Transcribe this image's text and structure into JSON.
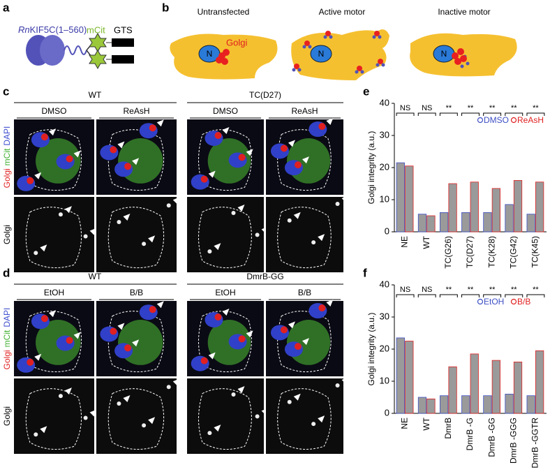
{
  "panel_labels": [
    "a",
    "b",
    "c",
    "d",
    "e",
    "f"
  ],
  "panel_a": {
    "construct_prefix": "Rn",
    "construct": "KIF5C(1–560)",
    "fluor": "mCit",
    "tag": "GTS"
  },
  "panel_b": {
    "states": [
      "Untransfected",
      "Active motor",
      "Inactive motor"
    ],
    "nucleus": "N",
    "golgi": "Golgi"
  },
  "panel_c": {
    "groups": [
      "WT",
      "TC(D27)"
    ],
    "conditions": [
      "DMSO",
      "ReAsH",
      "DMSO",
      "ReAsH"
    ],
    "channels": [
      "Golgi",
      "mCit",
      "DAPI"
    ],
    "bottom_channel": "Golgi"
  },
  "panel_d": {
    "groups": [
      "WT",
      "DmrB-GG"
    ],
    "conditions": [
      "EtOH",
      "B/B",
      "EtOH",
      "B/B"
    ],
    "channels": [
      "Golgi",
      "mCit",
      "DAPI"
    ],
    "bottom_channel": "Golgi"
  },
  "chart_data": [
    {
      "type": "bar",
      "ylabel": "Golgi integrity (a.u.)",
      "categories": [
        "NE",
        "WT",
        "TC(G26)",
        "TC(D27)",
        "TC(K28)",
        "TC(G42)",
        "TC(K45)"
      ],
      "series": [
        {
          "name": "DMSO",
          "color": "#3d4fc4",
          "values": [
            21.5,
            5.5,
            6,
            6,
            6,
            8.5,
            5.5
          ]
        },
        {
          "name": "ReAsH",
          "color": "#e02020",
          "values": [
            20.5,
            5,
            15,
            15.5,
            13.5,
            16,
            15.5
          ]
        }
      ],
      "significance": [
        "NS",
        "NS",
        "**",
        "**",
        "**",
        "**",
        "**"
      ],
      "ylim": [
        0,
        40
      ],
      "yticks": [
        0,
        10,
        20,
        30,
        40
      ]
    },
    {
      "type": "bar",
      "ylabel": "Golgi integrity (a.u.)",
      "categories": [
        "NE",
        "WT",
        "DmrB",
        "DmrB -G",
        "DmrB -GG",
        "DmrB -GGG",
        "DmrB -GGTR"
      ],
      "series": [
        {
          "name": "EtOH",
          "color": "#3d4fc4",
          "values": [
            23.5,
            5,
            5.5,
            5.5,
            5.5,
            6,
            5.5
          ]
        },
        {
          "name": "B/B",
          "color": "#e02020",
          "values": [
            22.5,
            4.5,
            14.5,
            18.5,
            16.5,
            16,
            19.5
          ]
        }
      ],
      "significance": [
        "NS",
        "NS",
        "**",
        "**",
        "**",
        "**",
        "**"
      ],
      "ylim": [
        0,
        40
      ],
      "yticks": [
        0,
        10,
        20,
        30,
        40
      ]
    }
  ]
}
